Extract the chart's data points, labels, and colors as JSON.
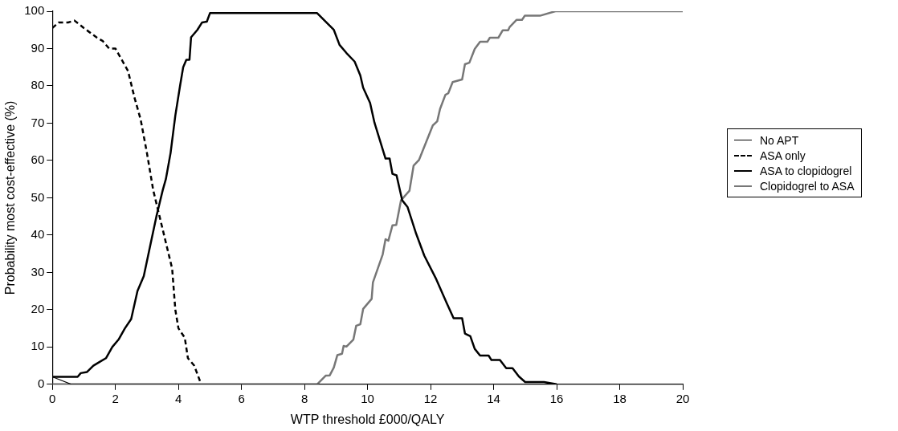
{
  "chart_data": {
    "type": "line",
    "xlabel": "WTP threshold £000/QALY",
    "ylabel": "Probability most cost-effective (%)",
    "xlim": [
      0,
      20
    ],
    "xticks": [
      0,
      2,
      4,
      6,
      8,
      10,
      12,
      14,
      16,
      18,
      20
    ],
    "ylim": [
      0,
      100
    ],
    "yticks": [
      0,
      10,
      20,
      30,
      40,
      50,
      60,
      70,
      80,
      90,
      100
    ],
    "grid": false,
    "legend": "right",
    "marker": "none",
    "series": [
      {
        "name": "No APT",
        "color": "#000000",
        "line_style": "solid",
        "x": [
          0,
          0.6,
          20
        ],
        "values": [
          2,
          0,
          0
        ]
      },
      {
        "name": "ASA only",
        "color": "#000000",
        "line_style": "dashed",
        "x": [
          0,
          0.2,
          0.5,
          0.7,
          1,
          1.4,
          1.6,
          1.8,
          2,
          2.2,
          2.4,
          2.6,
          2.8,
          3,
          3.2,
          3.4,
          3.6,
          3.8,
          3.9,
          4,
          4.2,
          4.3,
          4.5,
          4.7
        ],
        "values": [
          95.5,
          97,
          97,
          97.5,
          95.5,
          93,
          92,
          90,
          90,
          87,
          84,
          77,
          71,
          62,
          52,
          45,
          38,
          31,
          20,
          15,
          12.5,
          7,
          5,
          0.5
        ]
      },
      {
        "name": "ASA to clopidogrel",
        "color": "#000000",
        "line_style": "solid",
        "x": [
          0,
          0.8,
          0.9,
          1.1,
          1.3,
          1.5,
          1.7,
          1.9,
          2.1,
          2.3,
          2.5,
          2.7,
          2.9,
          3.1,
          3.3,
          3.5,
          3.6,
          3.75,
          3.9,
          4.05,
          4.15,
          4.25,
          4.35,
          4.4,
          4.6,
          4.75,
          4.9,
          5,
          8.4,
          8.93,
          9.11,
          9.33,
          9.59,
          9.77,
          9.86,
          10.08,
          10.22,
          10.57,
          10.7,
          10.79,
          10.92,
          11.1,
          11.27,
          11.54,
          11.8,
          12.16,
          12.51,
          12.73,
          13,
          13.09,
          13.26,
          13.4,
          13.57,
          13.84,
          13.93,
          14.2,
          14.4,
          14.6,
          14.8,
          15,
          15.6,
          16
        ],
        "values": [
          2,
          2,
          3,
          3.3,
          5,
          6,
          7,
          10,
          12,
          15,
          17.5,
          25,
          29,
          37,
          45,
          52,
          55,
          62,
          72,
          80,
          85,
          87,
          87,
          93,
          95,
          97,
          97.2,
          99.5,
          99.5,
          95,
          91,
          88.8,
          86.5,
          82.8,
          79.5,
          75.4,
          70.1,
          60.5,
          60.5,
          56.4,
          56,
          49.3,
          47.5,
          40.4,
          34.5,
          28.5,
          21.8,
          17.7,
          17.7,
          13.6,
          12.9,
          9.5,
          7.7,
          7.7,
          6.5,
          6.5,
          4.3,
          4.3,
          2.1,
          0.6,
          0.6,
          0
        ]
      },
      {
        "name": "Clopidogrel to ASA",
        "color": "#777777",
        "line_style": "solid",
        "x": [
          0,
          8.4,
          8.67,
          8.8,
          8.93,
          9.04,
          9.19,
          9.24,
          9.33,
          9.55,
          9.64,
          9.77,
          9.86,
          10.13,
          10.17,
          10.48,
          10.57,
          10.66,
          10.79,
          10.91,
          11.06,
          11.33,
          11.46,
          11.63,
          12.07,
          12.21,
          12.3,
          12.47,
          12.56,
          12.7,
          13,
          13.09,
          13.23,
          13.4,
          13.57,
          13.8,
          13.88,
          14.15,
          14.29,
          14.46,
          14.51,
          14.73,
          14.9,
          14.99,
          15.47,
          15.96,
          20
        ],
        "values": [
          0,
          0,
          2.3,
          2.4,
          4.5,
          7.8,
          8.2,
          10.3,
          10.1,
          12,
          15.7,
          16.1,
          20.2,
          22.9,
          27.3,
          34.8,
          38.9,
          38.5,
          42.6,
          42.7,
          49.3,
          51.9,
          58.6,
          60.1,
          69.4,
          70.5,
          73.8,
          77.6,
          78,
          81,
          81.7,
          85.8,
          86.2,
          89.9,
          91.8,
          91.8,
          92.9,
          92.9,
          94.9,
          94.9,
          95.8,
          97.7,
          97.7,
          98.8,
          98.8,
          100,
          100
        ]
      }
    ]
  }
}
